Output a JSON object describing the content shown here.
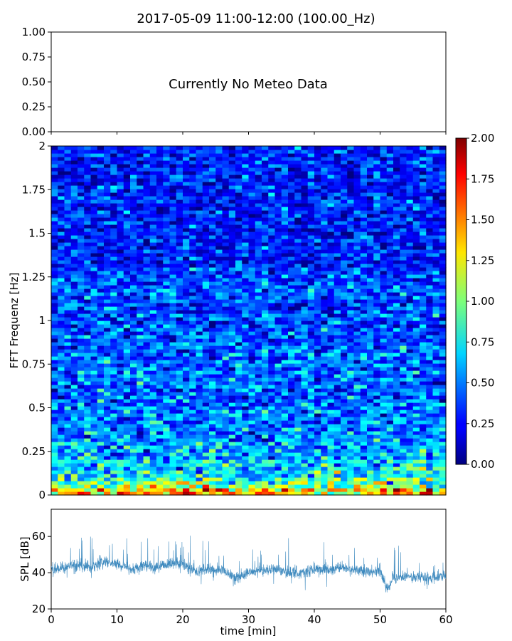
{
  "figure": {
    "title": "2017-05-09 11:00-12:00 (100.00_Hz)"
  },
  "chart_data": [
    {
      "type": "line",
      "panel": "meteo",
      "message": "Currently No Meteo Data",
      "ylim": [
        0,
        1
      ],
      "yticks": [
        "0.00",
        "0.25",
        "0.50",
        "0.75",
        "1.00"
      ],
      "xlim": [
        0,
        60
      ],
      "series": []
    },
    {
      "type": "heatmap",
      "panel": "spectrogram",
      "ylabel": "FFT Frequenz [Hz]",
      "ylim": [
        0,
        2
      ],
      "yticks": [
        "0",
        "0.25",
        "0.5",
        "0.75",
        "1",
        "1.25",
        "1.5",
        "1.75",
        "2"
      ],
      "xlim": [
        0,
        60
      ],
      "colorscale": "jet",
      "colorbar": {
        "range": [
          0,
          2
        ],
        "ticks": [
          "0.00",
          "0.25",
          "0.50",
          "0.75",
          "1.00",
          "1.25",
          "1.50",
          "1.75",
          "2.00"
        ]
      },
      "band_levels": [
        {
          "f_max": 0.05,
          "mean": 1.35
        },
        {
          "f_max": 0.1,
          "mean": 0.95
        },
        {
          "f_max": 0.2,
          "mean": 0.7
        },
        {
          "f_max": 0.3,
          "mean": 0.6
        },
        {
          "f_max": 0.5,
          "mean": 0.5
        },
        {
          "f_max": 0.85,
          "mean": 0.45
        },
        {
          "f_max": 1.3,
          "mean": 0.4
        },
        {
          "f_max": 2.0,
          "mean": 0.3
        }
      ]
    },
    {
      "type": "line",
      "panel": "spl",
      "xlabel": "time [min]",
      "ylabel": "SPL [dB]",
      "xlim": [
        0,
        60
      ],
      "ylim": [
        20,
        75
      ],
      "xticks": [
        "0",
        "10",
        "20",
        "30",
        "40",
        "50",
        "60"
      ],
      "yticks": [
        "20",
        "40",
        "60"
      ],
      "color": "#1f77b4",
      "series": [
        {
          "x": [
            0,
            2,
            4,
            6,
            8,
            10,
            12,
            14,
            16,
            18,
            20,
            22,
            24,
            26,
            28,
            30,
            32,
            34,
            36,
            38,
            40,
            42,
            44,
            46,
            48,
            50,
            51,
            52,
            54,
            56,
            58,
            60
          ],
          "y": [
            42,
            43,
            44,
            43,
            46,
            45,
            42,
            44,
            43,
            45,
            45,
            40,
            42,
            41,
            37,
            40,
            41,
            42,
            40,
            40,
            42,
            41,
            43,
            42,
            41,
            41,
            31,
            37,
            38,
            37,
            37,
            39
          ]
        }
      ]
    }
  ]
}
